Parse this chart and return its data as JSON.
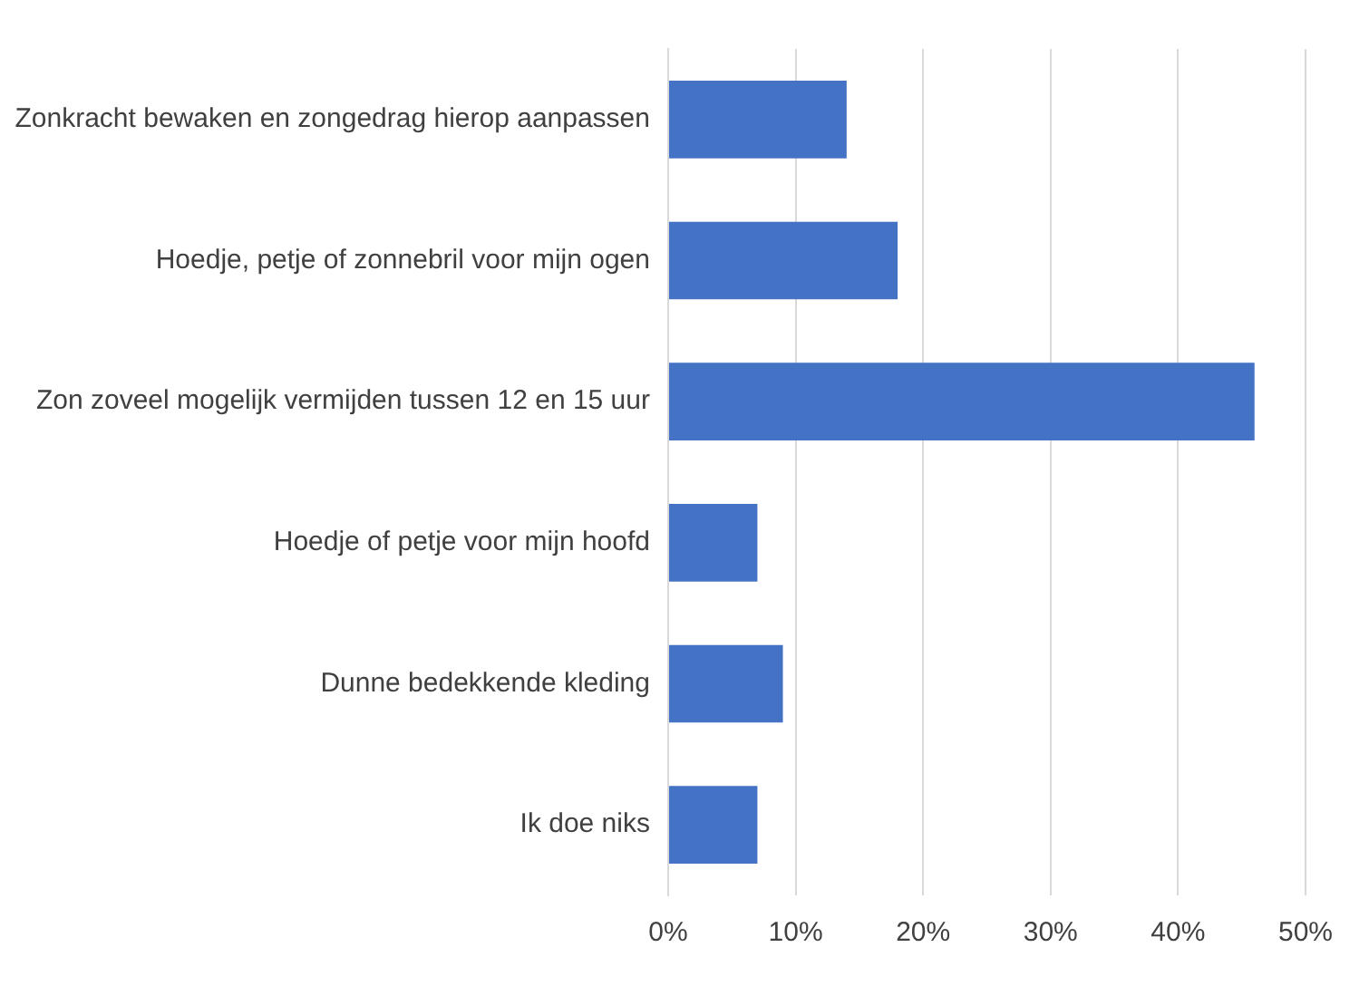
{
  "chart_data": {
    "type": "bar",
    "orientation": "horizontal",
    "categories": [
      "Zonkracht bewaken en zongedrag hierop aanpassen",
      "Hoedje, petje of zonnebril voor mijn ogen",
      "Zon zoveel mogelijk vermijden tussen 12 en 15 uur",
      "Hoedje of petje voor mijn hoofd",
      "Dunne bedekkende kleding",
      "Ik doe niks"
    ],
    "values": [
      14,
      18,
      46,
      7,
      9,
      7
    ],
    "color": "#4472c4",
    "xlim": [
      0,
      50
    ],
    "xticks": [
      {
        "value": 0,
        "label": "0%"
      },
      {
        "value": 10,
        "label": "10%"
      },
      {
        "value": 20,
        "label": "20%"
      },
      {
        "value": 30,
        "label": "30%"
      },
      {
        "value": 40,
        "label": "40%"
      },
      {
        "value": 50,
        "label": "50%"
      }
    ],
    "grid": "x",
    "legend": false
  }
}
